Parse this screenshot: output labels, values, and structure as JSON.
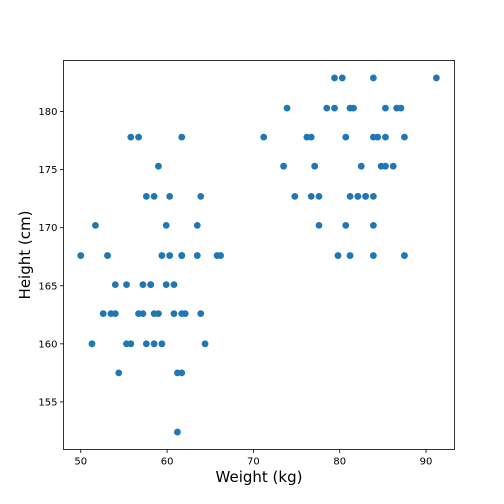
{
  "chart_data": {
    "type": "scatter",
    "xlabel": "Weight (kg)",
    "ylabel": "Height (cm)",
    "xlim": [
      48,
      93.3
    ],
    "ylim": [
      150.9,
      184.4
    ],
    "xticks": [
      50,
      60,
      70,
      80,
      90
    ],
    "yticks": [
      155,
      160,
      165,
      170,
      175,
      180
    ],
    "grid": false,
    "legend": "none",
    "marker_color": "#1f77b4",
    "points": [
      [
        50.0,
        167.6
      ],
      [
        51.3,
        160.0
      ],
      [
        51.7,
        170.2
      ],
      [
        52.6,
        162.6
      ],
      [
        53.1,
        167.6
      ],
      [
        53.5,
        162.6
      ],
      [
        54.0,
        162.6
      ],
      [
        54.0,
        165.1
      ],
      [
        54.4,
        157.5
      ],
      [
        55.3,
        160.0
      ],
      [
        55.3,
        165.1
      ],
      [
        55.8,
        160.0
      ],
      [
        55.8,
        177.8
      ],
      [
        56.7,
        162.6
      ],
      [
        56.7,
        177.8
      ],
      [
        57.2,
        162.6
      ],
      [
        57.2,
        165.1
      ],
      [
        57.6,
        160.0
      ],
      [
        57.6,
        172.7
      ],
      [
        58.1,
        165.1
      ],
      [
        58.1,
        165.1
      ],
      [
        58.5,
        162.6
      ],
      [
        58.5,
        160.0
      ],
      [
        58.5,
        172.7
      ],
      [
        59.0,
        162.6
      ],
      [
        59.0,
        175.3
      ],
      [
        59.4,
        167.6
      ],
      [
        59.4,
        160.0
      ],
      [
        59.9,
        170.2
      ],
      [
        59.9,
        165.1
      ],
      [
        60.3,
        172.7
      ],
      [
        60.3,
        167.6
      ],
      [
        60.8,
        162.6
      ],
      [
        60.8,
        165.1
      ],
      [
        61.2,
        157.5
      ],
      [
        61.2,
        152.4
      ],
      [
        61.7,
        157.5
      ],
      [
        61.7,
        162.6
      ],
      [
        61.7,
        167.6
      ],
      [
        61.7,
        167.6
      ],
      [
        61.7,
        177.8
      ],
      [
        62.1,
        162.6
      ],
      [
        63.5,
        167.6
      ],
      [
        63.5,
        170.2
      ],
      [
        63.9,
        172.7
      ],
      [
        63.9,
        162.6
      ],
      [
        64.4,
        160.0
      ],
      [
        65.8,
        167.6
      ],
      [
        66.2,
        167.6
      ],
      [
        71.2,
        177.8
      ],
      [
        73.5,
        175.3
      ],
      [
        73.9,
        180.3
      ],
      [
        74.8,
        172.7
      ],
      [
        76.2,
        177.8
      ],
      [
        76.7,
        177.8
      ],
      [
        76.7,
        172.7
      ],
      [
        77.1,
        175.3
      ],
      [
        77.6,
        172.7
      ],
      [
        77.6,
        170.2
      ],
      [
        78.5,
        180.3
      ],
      [
        79.4,
        182.9
      ],
      [
        79.4,
        180.3
      ],
      [
        79.8,
        167.6
      ],
      [
        80.3,
        182.9
      ],
      [
        80.7,
        177.8
      ],
      [
        80.7,
        170.2
      ],
      [
        81.2,
        167.6
      ],
      [
        81.2,
        172.7
      ],
      [
        81.2,
        180.3
      ],
      [
        81.6,
        180.3
      ],
      [
        82.1,
        172.7
      ],
      [
        82.1,
        172.7
      ],
      [
        82.5,
        175.3
      ],
      [
        83.0,
        172.7
      ],
      [
        83.0,
        172.7
      ],
      [
        83.9,
        182.9
      ],
      [
        83.9,
        177.8
      ],
      [
        83.9,
        172.7
      ],
      [
        83.9,
        170.2
      ],
      [
        83.9,
        167.6
      ],
      [
        84.4,
        177.8
      ],
      [
        84.8,
        175.3
      ],
      [
        85.3,
        180.3
      ],
      [
        85.3,
        177.8
      ],
      [
        85.3,
        175.3
      ],
      [
        86.2,
        175.3
      ],
      [
        86.6,
        180.3
      ],
      [
        87.1,
        180.3
      ],
      [
        87.5,
        177.8
      ],
      [
        87.5,
        167.6
      ],
      [
        91.2,
        182.9
      ]
    ]
  }
}
